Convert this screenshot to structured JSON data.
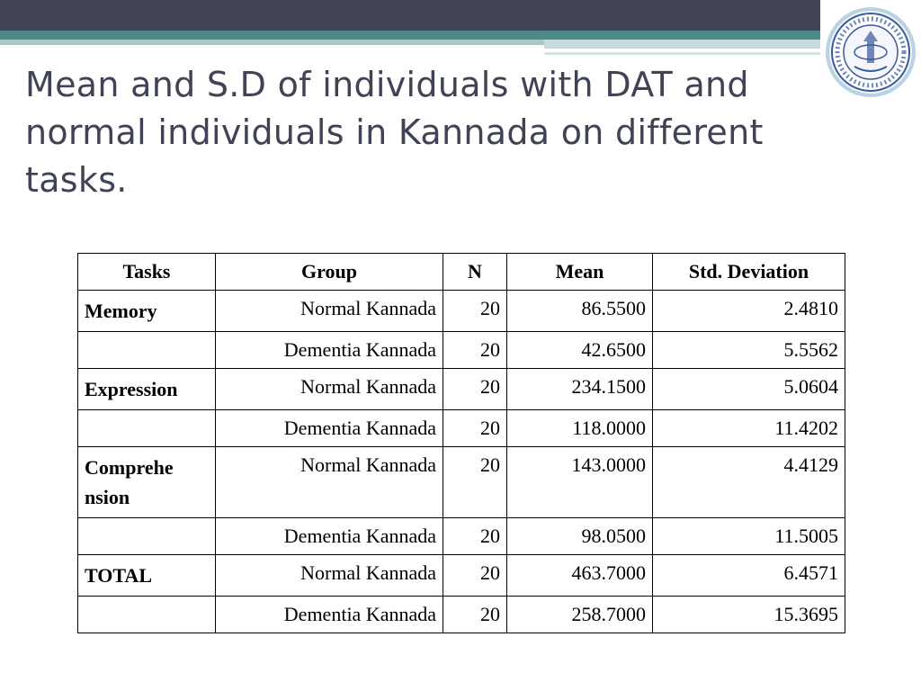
{
  "slide": {
    "title": "Mean and S.D of individuals with DAT and normal individuals in Kannada on different tasks.",
    "logo_icon": "institute-seal-logo",
    "colors": {
      "header_dark": "#404255",
      "header_teal": "#4f8a8a",
      "title_text": "#404255"
    }
  },
  "table": {
    "headers": [
      "Tasks",
      "Group",
      "N",
      "Mean",
      "Std. Deviation"
    ],
    "rows": [
      {
        "task": "Memory",
        "group": "Normal Kannada",
        "n": "20",
        "mean": "86.5500",
        "sd": "2.4810"
      },
      {
        "task": "",
        "group": "Dementia Kannada",
        "n": "20",
        "mean": "42.6500",
        "sd": "5.5562"
      },
      {
        "task": "Expression",
        "group": "Normal Kannada",
        "n": "20",
        "mean": "234.1500",
        "sd": "5.0604"
      },
      {
        "task": "",
        "group": "Dementia Kannada",
        "n": "20",
        "mean": "118.0000",
        "sd": "11.4202"
      },
      {
        "task": "Comprehe nsion",
        "group": "Normal Kannada",
        "n": "20",
        "mean": "143.0000",
        "sd": "4.4129"
      },
      {
        "task": "",
        "group": "Dementia Kannada",
        "n": "20",
        "mean": "98.0500",
        "sd": "11.5005"
      },
      {
        "task": "TOTAL",
        "group": "Normal Kannada",
        "n": "20",
        "mean": "463.7000",
        "sd": "6.4571"
      },
      {
        "task": "",
        "group": "Dementia Kannada",
        "n": "20",
        "mean": "258.7000",
        "sd": "15.3695"
      }
    ]
  }
}
